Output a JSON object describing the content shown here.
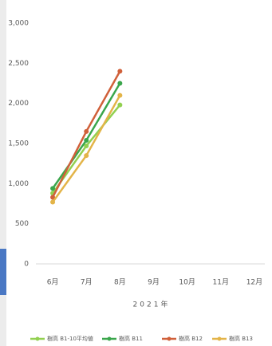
{
  "chart_data": {
    "type": "line",
    "categories": [
      "6月",
      "7月",
      "8月",
      "9月",
      "10月",
      "11月",
      "12月"
    ],
    "x_label": "2021年",
    "series": [
      {
        "name": "樹高 B1-10平均値",
        "color": "#92d050",
        "values": [
          880,
          1470,
          1980,
          null,
          null,
          null,
          null
        ]
      },
      {
        "name": "樹高 B11",
        "color": "#3aa64c",
        "values": [
          940,
          1540,
          2250,
          null,
          null,
          null,
          null
        ]
      },
      {
        "name": "樹高 B12",
        "color": "#d0603a",
        "values": [
          830,
          1650,
          2400,
          null,
          null,
          null,
          null
        ]
      },
      {
        "name": "樹高 B13",
        "color": "#e3b448",
        "values": [
          770,
          1350,
          2100,
          null,
          null,
          null,
          null
        ]
      }
    ],
    "ylim": [
      0,
      3000
    ],
    "yticks": [
      0,
      500,
      {
        "value": 1000,
        "label": "1,000"
      },
      {
        "value": 1500,
        "label": "1,500"
      },
      {
        "value": 2000,
        "label": "2,000"
      },
      {
        "value": 2500,
        "label": "2,500"
      },
      {
        "value": 3000,
        "label": "3,000"
      }
    ],
    "grid": false
  }
}
